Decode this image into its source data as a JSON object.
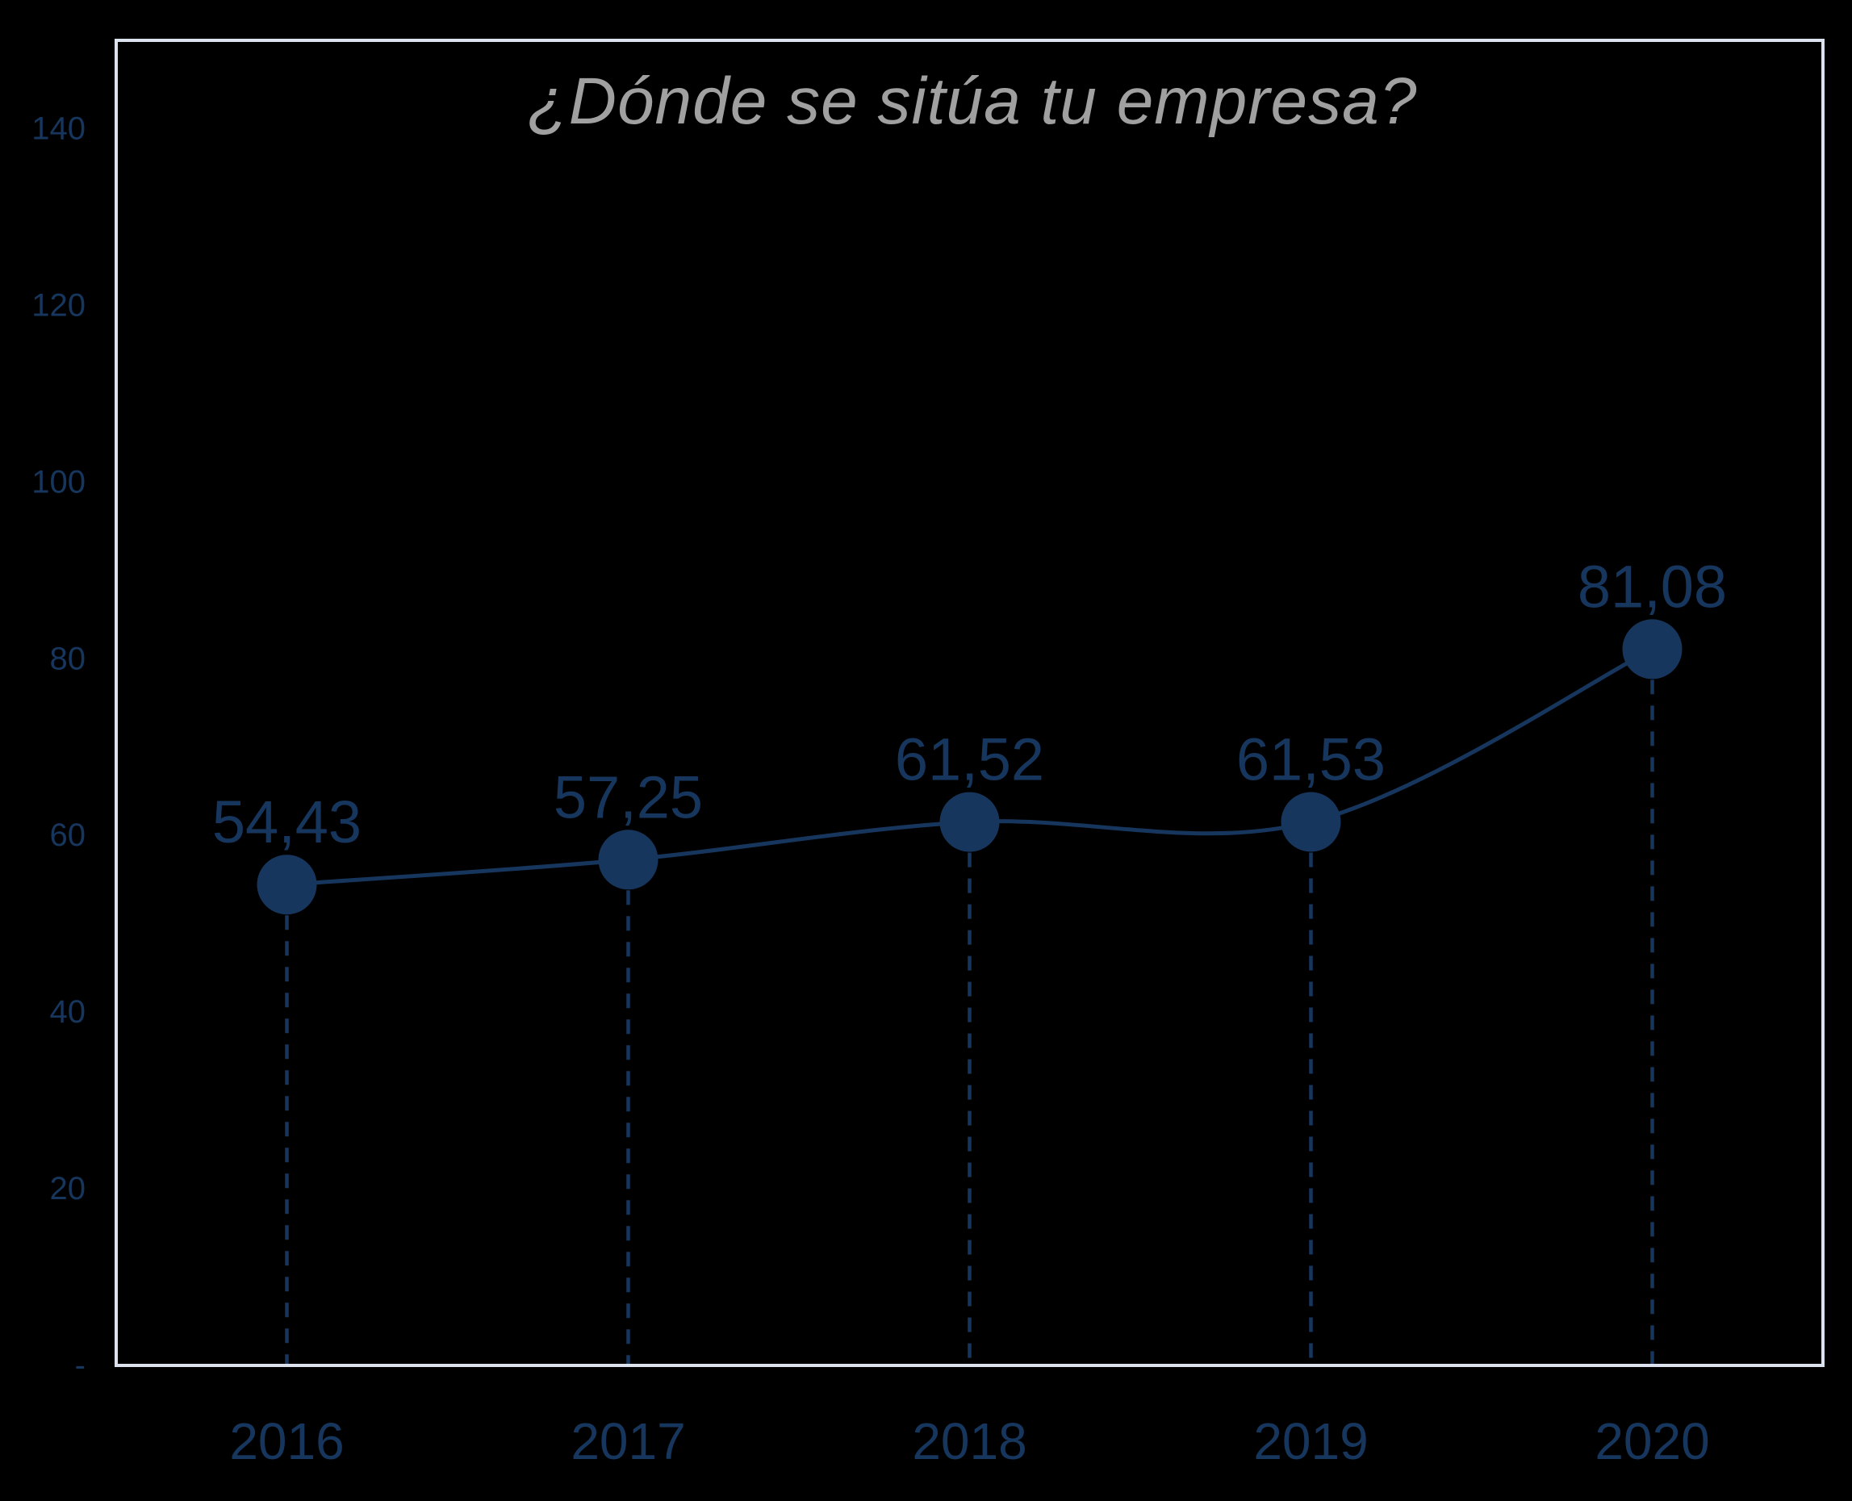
{
  "chart_data": {
    "type": "line",
    "title": "¿Dónde se sitúa tu empresa?",
    "categories": [
      "2016",
      "2017",
      "2018",
      "2019",
      "2020"
    ],
    "values": [
      54.43,
      57.25,
      61.52,
      61.53,
      81.08
    ],
    "data_labels": [
      "54,43",
      "57,25",
      "61,52",
      "61,53",
      "81,08"
    ],
    "xlabel": "",
    "ylabel": "",
    "y_axis": {
      "min": 0,
      "max": 150,
      "tick_interval": 20,
      "tick_labels": [
        "-",
        "20",
        "40",
        "60",
        "80",
        "100",
        "120",
        "140"
      ]
    },
    "grid": false,
    "legend": false,
    "line_smoothed": true,
    "marker": "circle",
    "drop_lines": "dashed",
    "colors": {
      "background": "#000000",
      "series": "#17365D",
      "axis_label_text": "#17365D",
      "data_label_text": "#17365D",
      "title_text": "#A0A0A0",
      "plot_border": "#DCE3EE"
    }
  }
}
